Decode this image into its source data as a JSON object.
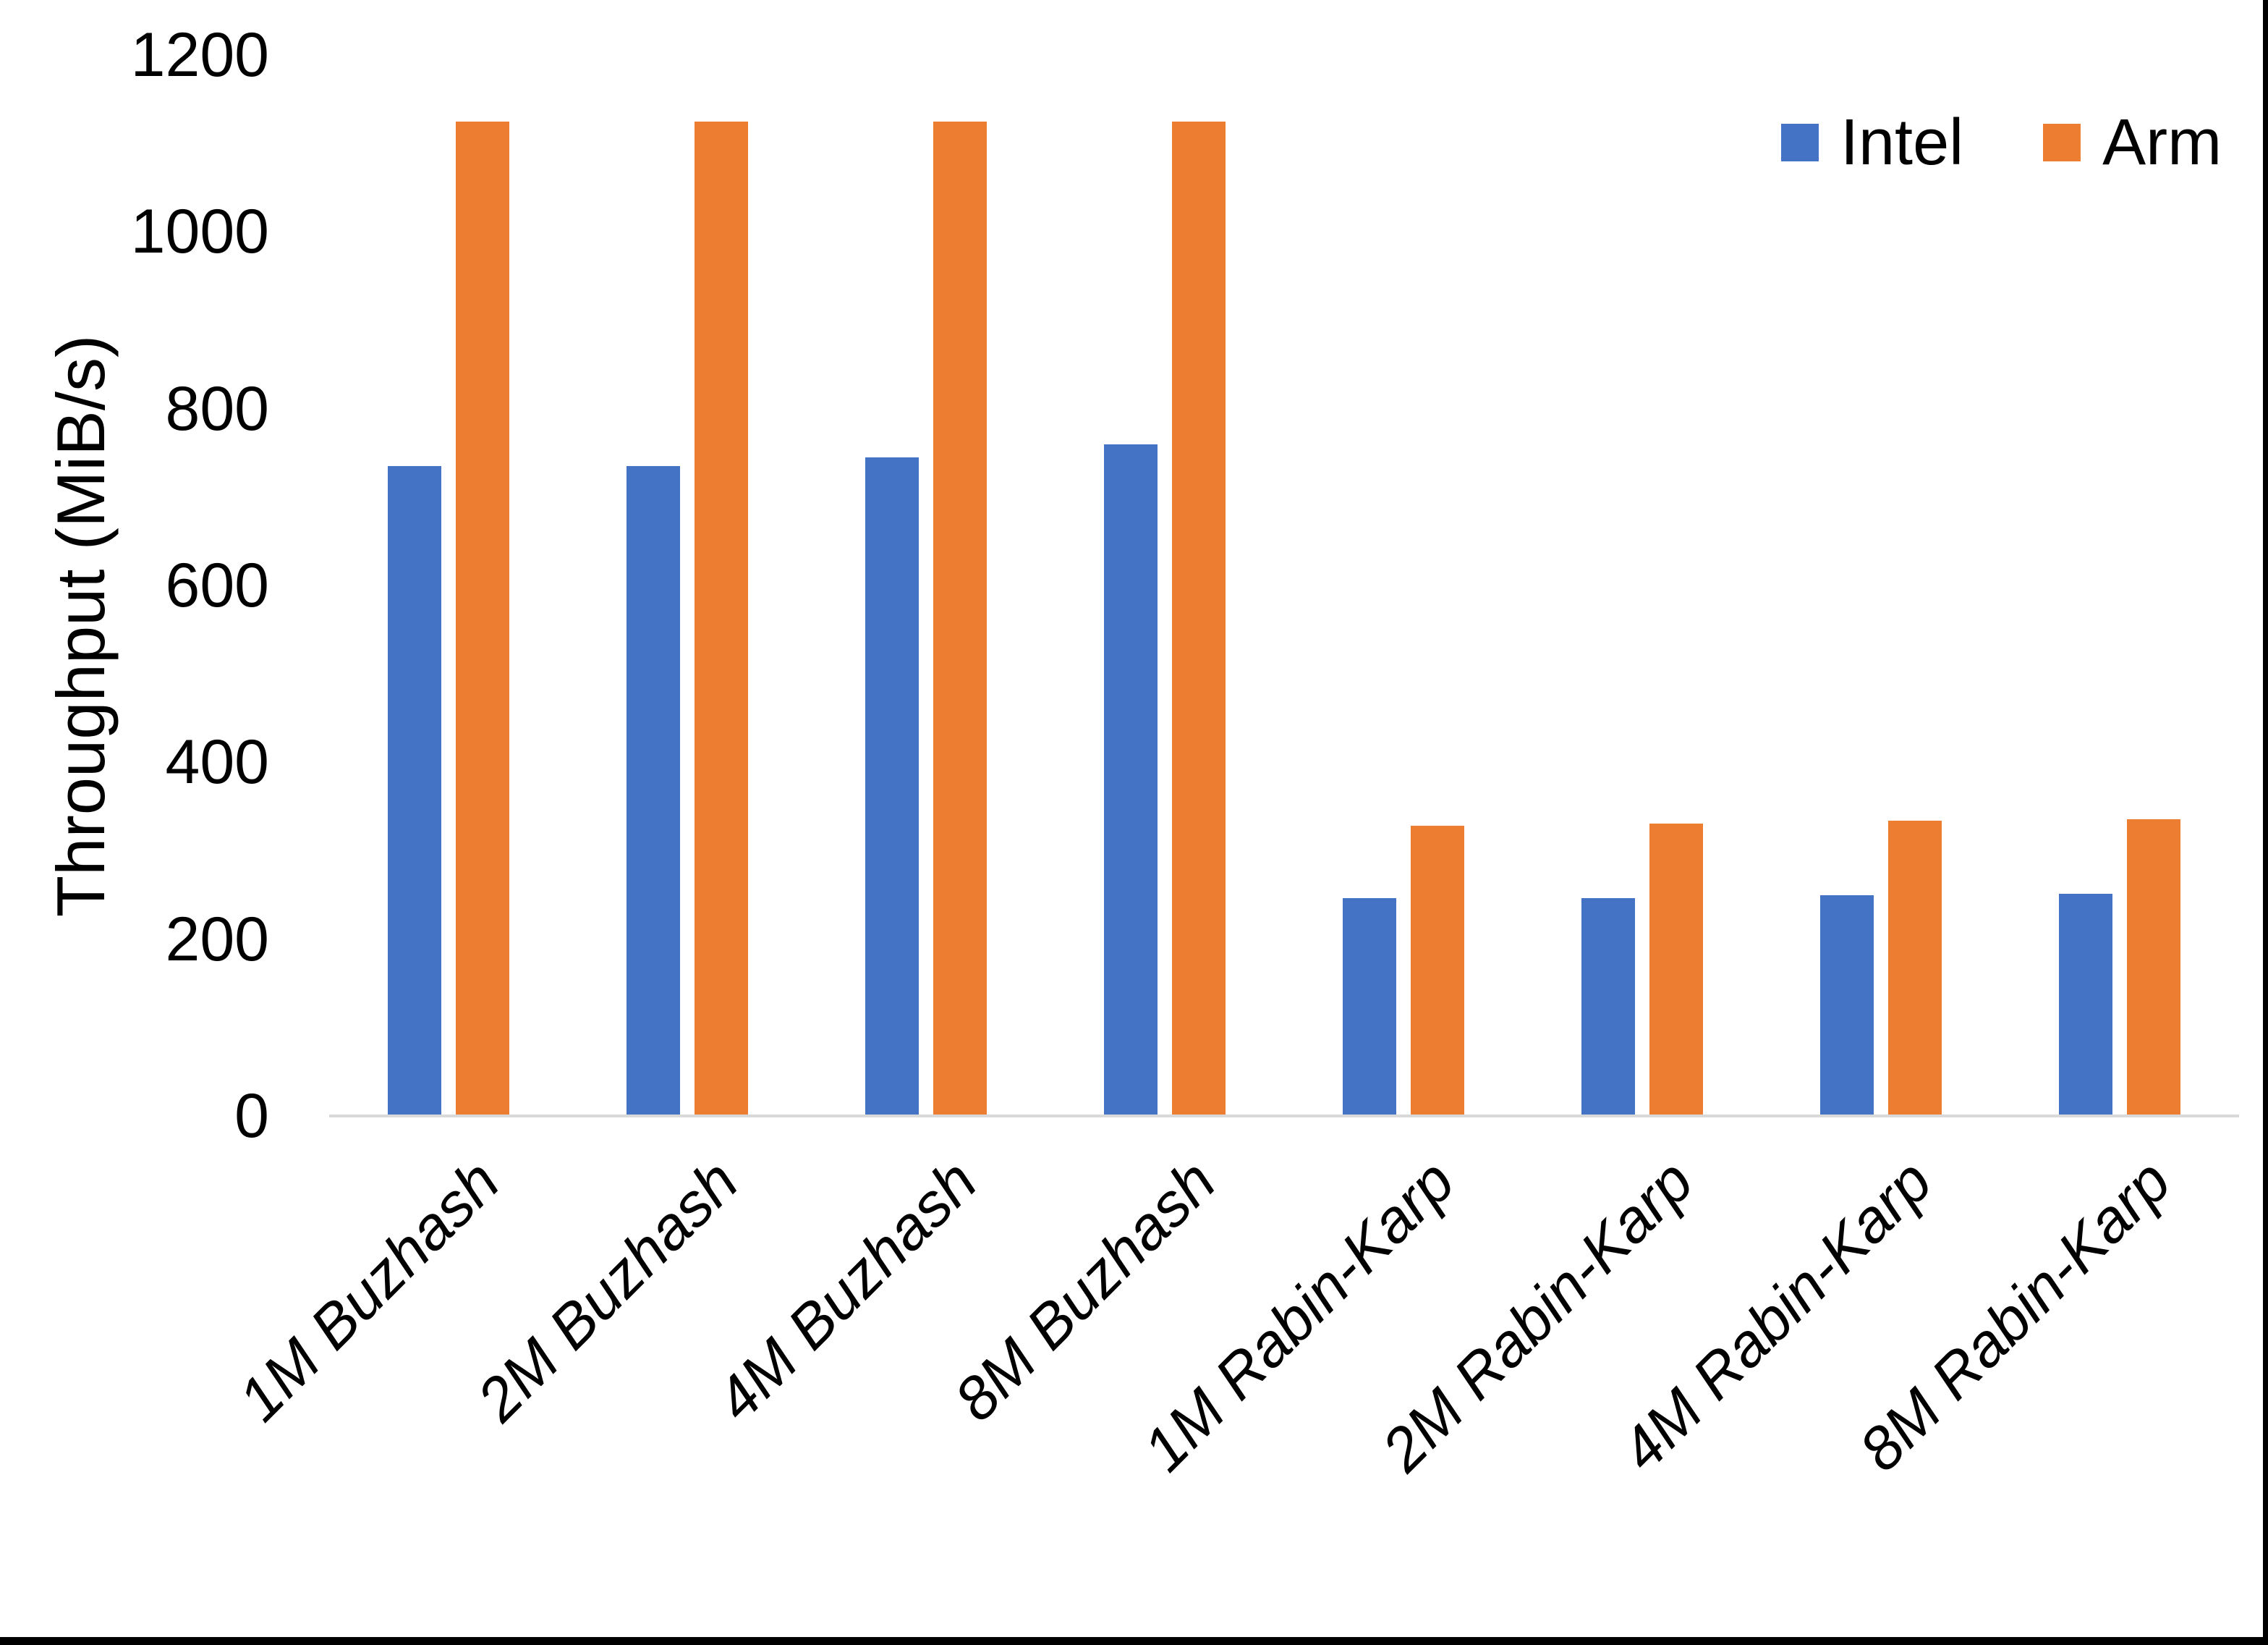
{
  "chart_data": {
    "type": "bar",
    "title": "",
    "xlabel": "",
    "ylabel": "Throughput (MiB/s)",
    "ylim": [
      0,
      1200
    ],
    "yticks": [
      0,
      200,
      400,
      600,
      800,
      1000,
      1200
    ],
    "grid": false,
    "legend_position": "top-right",
    "categories": [
      "1M Buzhash",
      "2M Buzhash",
      "4M Buzhash",
      "8M Buzhash",
      "1M Rabin-Karp",
      "2M Rabin-Karp",
      "4M Rabin-Karp",
      "8M Rabin-Karp"
    ],
    "series": [
      {
        "name": "Intel",
        "color": "#4472C4",
        "values": [
          735,
          735,
          745,
          760,
          246,
          246,
          250,
          251
        ]
      },
      {
        "name": "Arm",
        "color": "#ED7D31",
        "values": [
          1125,
          1125,
          1125,
          1125,
          328,
          331,
          334,
          336
        ]
      }
    ]
  },
  "colors": {
    "axis_line": "#D9D9D9",
    "text": "#000000",
    "screen_border": "#000000"
  }
}
